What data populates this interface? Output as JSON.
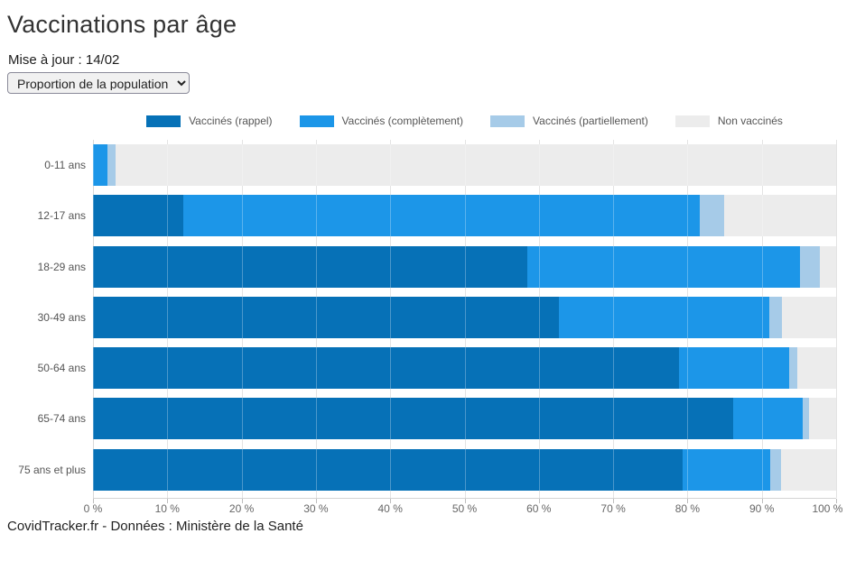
{
  "header": {
    "title": "Vaccinations par âge",
    "updated": "Mise à jour : 14/02"
  },
  "controls": {
    "metric_selected": "Proportion de la population"
  },
  "chart_data": {
    "type": "bar",
    "orientation": "horizontal-stacked",
    "title": "Vaccinations par âge",
    "categories": [
      "0-11 ans",
      "12-17 ans",
      "18-29 ans",
      "30-49 ans",
      "50-64 ans",
      "65-74 ans",
      "75 ans et plus"
    ],
    "series": [
      {
        "name": "Vaccinés (rappel)",
        "color": "#0671b7",
        "values": [
          0,
          12.2,
          58.5,
          62.7,
          78.8,
          86.2,
          79.4
        ]
      },
      {
        "name": "Vaccinés (complètement)",
        "color": "#1c96e8",
        "values": [
          1.9,
          69.4,
          36.7,
          28.3,
          14.9,
          9.3,
          11.7
        ]
      },
      {
        "name": "Vaccinés (partiellement)",
        "color": "#a6cbe8",
        "values": [
          1.1,
          3.3,
          2.6,
          1.7,
          1.1,
          0.8,
          1.5
        ]
      },
      {
        "name": "Non vaccinés",
        "color": "#ececec",
        "values": [
          97.0,
          15.1,
          2.2,
          7.3,
          5.2,
          3.7,
          7.4
        ]
      }
    ],
    "xlabel": "",
    "ylabel": "",
    "xlim": [
      0,
      100
    ],
    "x_ticks": [
      "0 %",
      "10 %",
      "20 %",
      "30 %",
      "40 %",
      "50 %",
      "60 %",
      "70 %",
      "80 %",
      "90 %",
      "100 %"
    ],
    "x_tick_values": [
      0,
      10,
      20,
      30,
      40,
      50,
      60,
      70,
      80,
      90,
      100
    ],
    "grid": true,
    "legend_position": "top"
  },
  "footer": {
    "credit": "CovidTracker.fr - Données : Ministère de la Santé"
  }
}
